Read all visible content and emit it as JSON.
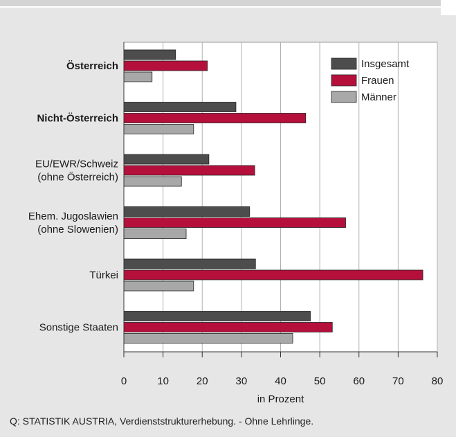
{
  "chart_data": {
    "type": "bar",
    "orientation": "horizontal",
    "categories": [
      {
        "lines": [
          "Österreich"
        ],
        "bold": true
      },
      {
        "lines": [
          "Nicht-Österreich"
        ],
        "bold": true
      },
      {
        "lines": [
          "EU/EWR/Schweiz",
          "(ohne Österreich)"
        ],
        "bold": false
      },
      {
        "lines": [
          "Ehem. Jugoslawien",
          "(ohne Slowenien)"
        ],
        "bold": false
      },
      {
        "lines": [
          "Türkei"
        ],
        "bold": false
      },
      {
        "lines": [
          "Sonstige Staaten"
        ],
        "bold": false
      }
    ],
    "series": [
      {
        "name": "Insgesamt",
        "color": "#4d4d4d",
        "values": [
          13.2,
          28.6,
          21.7,
          32.1,
          33.6,
          47.6
        ]
      },
      {
        "name": "Frauen",
        "color": "#b5103c",
        "values": [
          21.3,
          46.4,
          33.4,
          56.6,
          76.3,
          53.2
        ]
      },
      {
        "name": "Männer",
        "color": "#a8a8a8",
        "values": [
          7.2,
          17.8,
          14.7,
          15.9,
          17.8,
          43.1
        ]
      }
    ],
    "xlabel": "in Prozent",
    "xlim": [
      0,
      80
    ],
    "xticks": [
      0,
      10,
      20,
      30,
      40,
      50,
      60,
      70,
      80
    ],
    "grid": true,
    "legend": "top-right"
  },
  "source": "Q: STATISTIK AUSTRIA, Verdienststrukturerhebung. - Ohne Lehrlinge."
}
